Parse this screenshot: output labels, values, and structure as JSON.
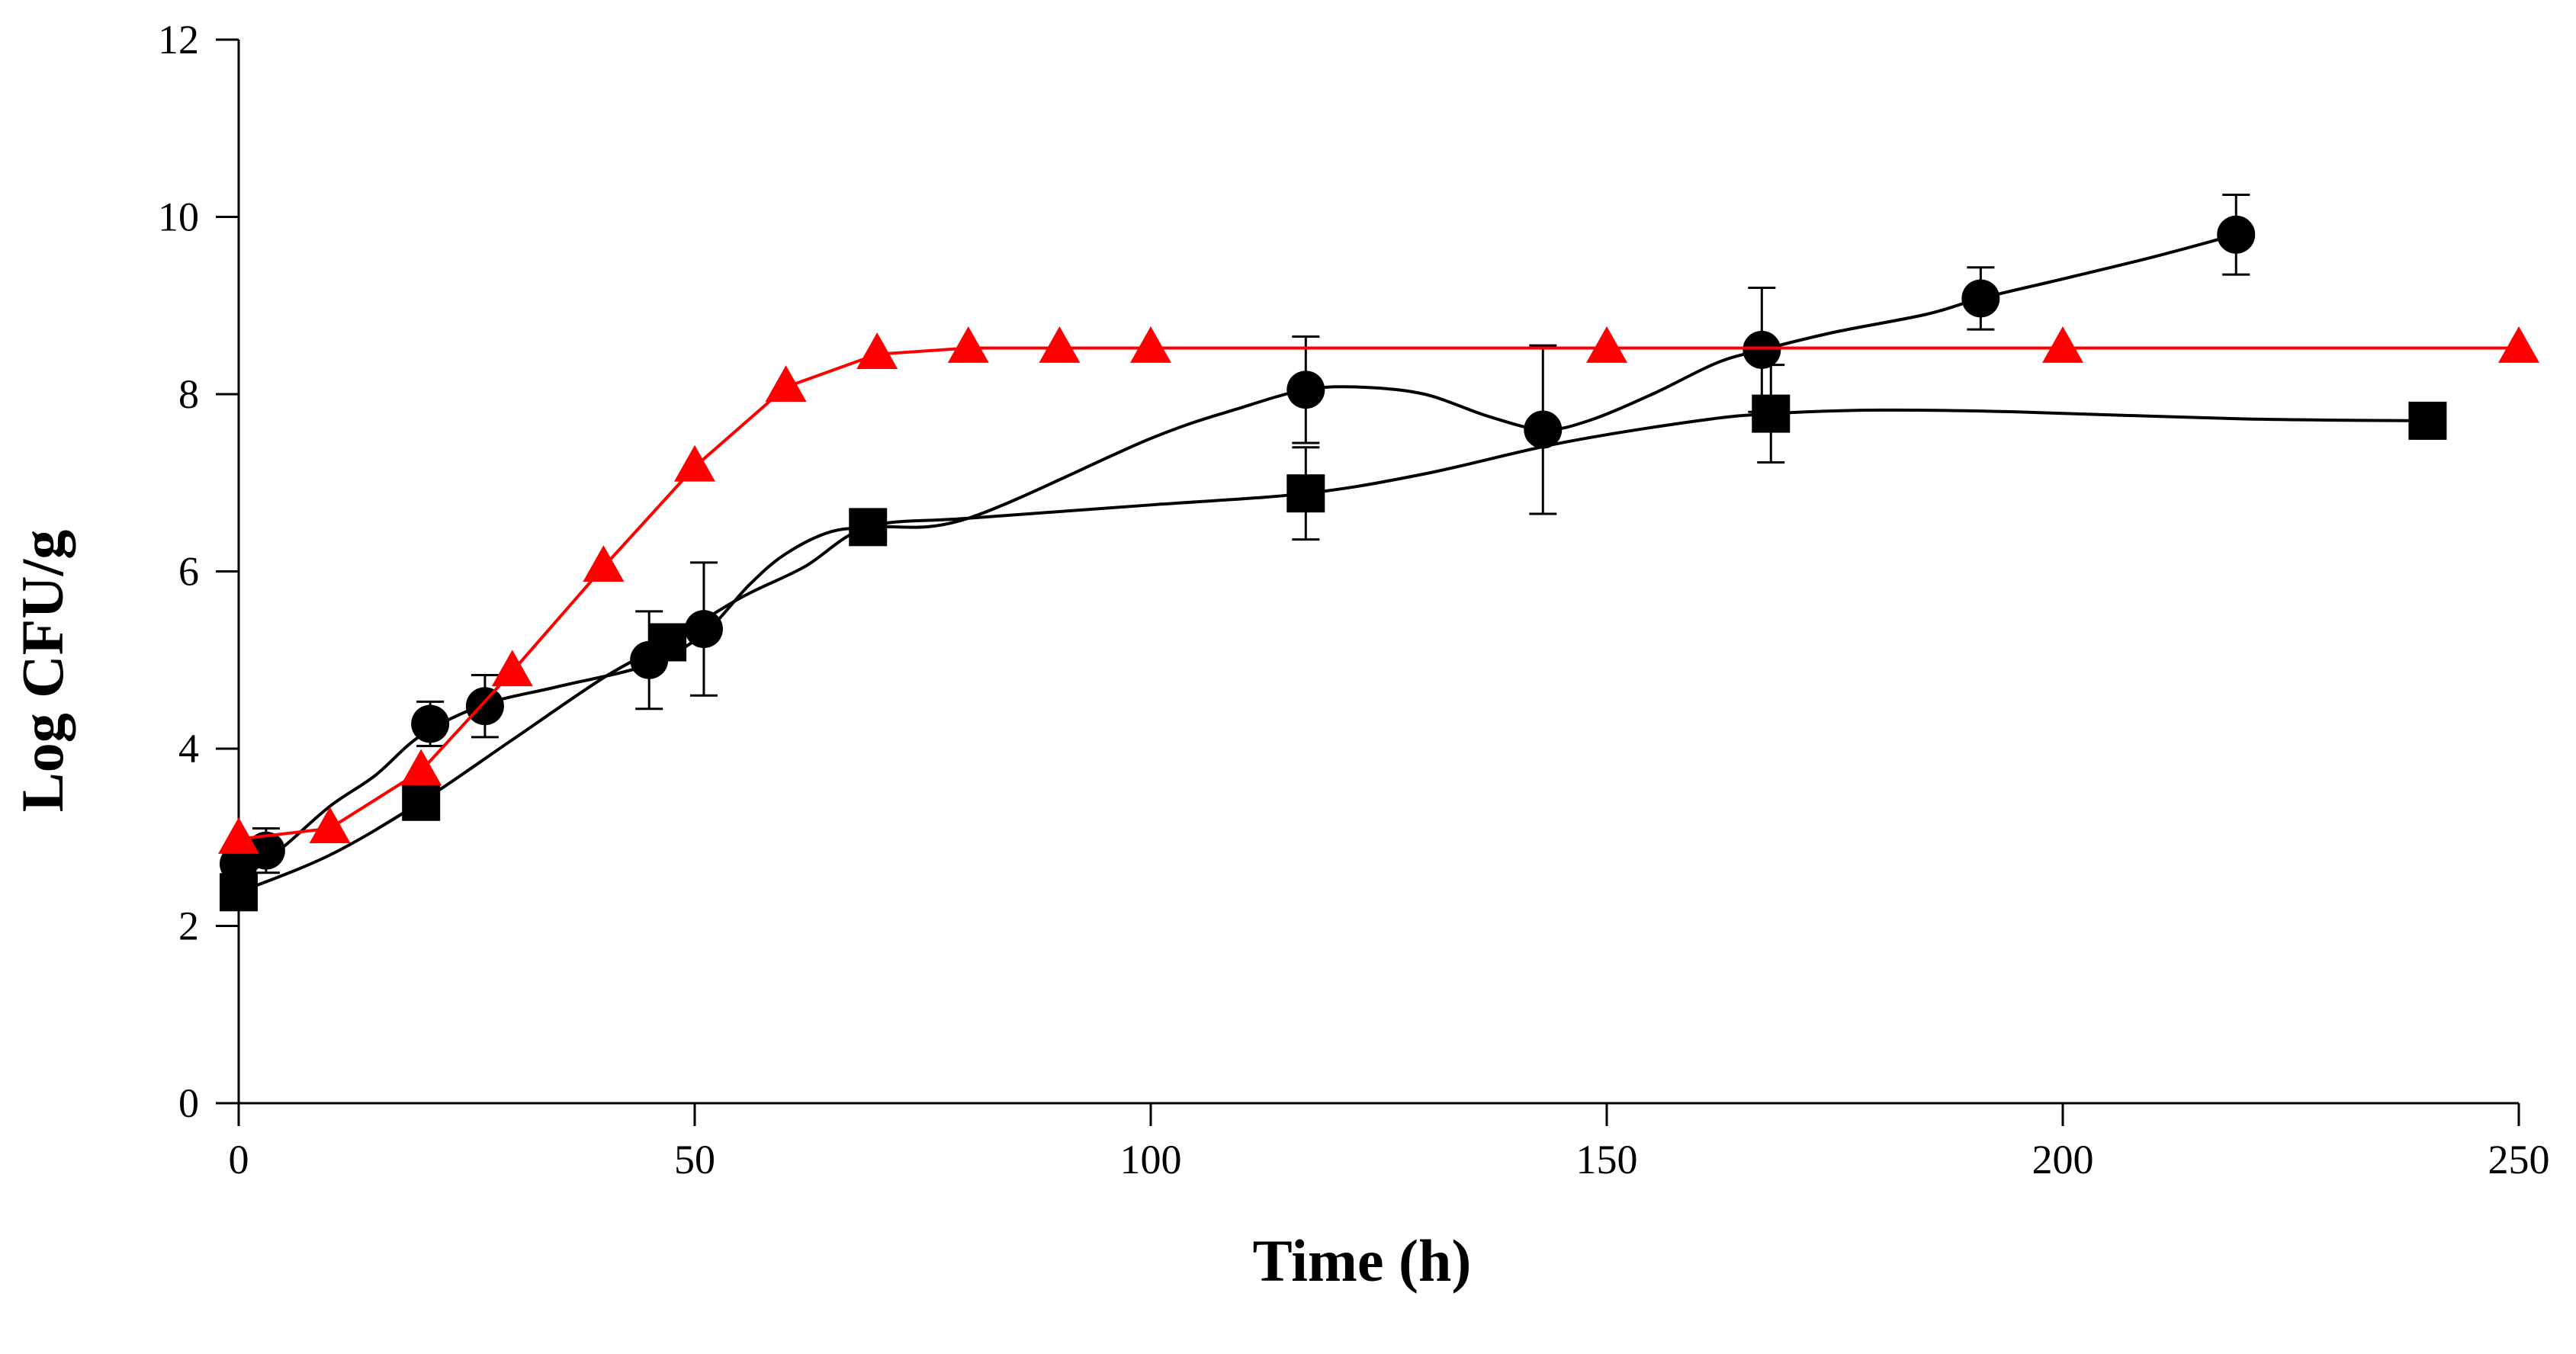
{
  "chart_data": {
    "type": "scatter",
    "title": "",
    "xlabel": "Time (h)",
    "ylabel": "Log CFU/g",
    "xlim": [
      0,
      250
    ],
    "ylim": [
      0,
      12
    ],
    "xticks": [
      0,
      50,
      100,
      150,
      200,
      250
    ],
    "yticks": [
      0,
      2,
      4,
      6,
      8,
      10,
      12
    ],
    "x_tick_labels": [
      "0",
      "50",
      "100",
      "150",
      "200",
      "250"
    ],
    "y_tick_labels": [
      "0",
      "2",
      "4",
      "6",
      "8",
      "10",
      "12"
    ],
    "grid": false,
    "legend": "none",
    "series": [
      {
        "marker": "circle",
        "color": "#000000",
        "points": [
          {
            "x": 0,
            "y": 2.7,
            "err": 0.15
          },
          {
            "x": 3,
            "y": 2.85,
            "err": 0.25
          },
          {
            "x": 21,
            "y": 4.28,
            "err": 0.25
          },
          {
            "x": 27,
            "y": 4.48,
            "err": 0.35
          },
          {
            "x": 45,
            "y": 5.0,
            "err": 0.55
          },
          {
            "x": 51,
            "y": 5.35,
            "err": 0.75
          },
          {
            "x": 117,
            "y": 8.05,
            "err": 0.6
          },
          {
            "x": 143,
            "y": 7.6,
            "err": 0.95
          },
          {
            "x": 167,
            "y": 8.5,
            "err": 0.7
          },
          {
            "x": 191,
            "y": 9.08,
            "err": 0.35
          },
          {
            "x": 219,
            "y": 9.8,
            "err": 0.45
          }
        ],
        "fit": [
          [
            0,
            2.5
          ],
          [
            5,
            2.9
          ],
          [
            10,
            3.35
          ],
          [
            15,
            3.7
          ],
          [
            20,
            4.15
          ],
          [
            27,
            4.5
          ],
          [
            35,
            4.7
          ],
          [
            45,
            4.95
          ],
          [
            51,
            5.3
          ],
          [
            56,
            5.85
          ],
          [
            60,
            6.2
          ],
          [
            65,
            6.45
          ],
          [
            70,
            6.5
          ],
          [
            80,
            6.6
          ],
          [
            100,
            7.5
          ],
          [
            110,
            7.85
          ],
          [
            117,
            8.05
          ],
          [
            123,
            8.08
          ],
          [
            130,
            8.0
          ],
          [
            137,
            7.75
          ],
          [
            143,
            7.6
          ],
          [
            148,
            7.7
          ],
          [
            155,
            8.0
          ],
          [
            162,
            8.35
          ],
          [
            167,
            8.5
          ],
          [
            175,
            8.7
          ],
          [
            185,
            8.9
          ],
          [
            191,
            9.08
          ],
          [
            200,
            9.3
          ],
          [
            210,
            9.55
          ],
          [
            219,
            9.8
          ]
        ]
      },
      {
        "marker": "square",
        "color": "#000000",
        "points": [
          {
            "x": 0,
            "y": 2.38,
            "err": 0.1
          },
          {
            "x": 20,
            "y": 3.4,
            "err": 0.1
          },
          {
            "x": 47,
            "y": 5.2,
            "err": 0.1
          },
          {
            "x": 69,
            "y": 6.5,
            "err": 0.15
          },
          {
            "x": 117,
            "y": 6.88,
            "err": 0.52
          },
          {
            "x": 168,
            "y": 7.78,
            "err": 0.55
          },
          {
            "x": 240,
            "y": 7.7,
            "err": 0.2
          }
        ],
        "fit": [
          [
            0,
            2.38
          ],
          [
            10,
            2.8
          ],
          [
            20,
            3.4
          ],
          [
            30,
            4.1
          ],
          [
            40,
            4.8
          ],
          [
            47,
            5.2
          ],
          [
            55,
            5.7
          ],
          [
            62,
            6.05
          ],
          [
            69,
            6.5
          ],
          [
            80,
            6.6
          ],
          [
            100,
            6.75
          ],
          [
            117,
            6.88
          ],
          [
            130,
            7.1
          ],
          [
            145,
            7.45
          ],
          [
            160,
            7.7
          ],
          [
            168,
            7.78
          ],
          [
            180,
            7.82
          ],
          [
            195,
            7.8
          ],
          [
            220,
            7.72
          ],
          [
            240,
            7.7
          ]
        ]
      },
      {
        "marker": "triangle",
        "color": "#ff0000",
        "points": [
          {
            "x": 0,
            "y": 2.98
          },
          {
            "x": 10,
            "y": 3.1
          },
          {
            "x": 20,
            "y": 3.75
          },
          {
            "x": 30,
            "y": 4.87
          },
          {
            "x": 40,
            "y": 6.05
          },
          {
            "x": 50,
            "y": 7.18
          },
          {
            "x": 60,
            "y": 8.08
          },
          {
            "x": 70,
            "y": 8.45
          },
          {
            "x": 80,
            "y": 8.52
          },
          {
            "x": 90,
            "y": 8.52
          },
          {
            "x": 100,
            "y": 8.52
          },
          {
            "x": 150,
            "y": 8.52
          },
          {
            "x": 200,
            "y": 8.52
          },
          {
            "x": 250,
            "y": 8.52
          }
        ]
      }
    ]
  }
}
